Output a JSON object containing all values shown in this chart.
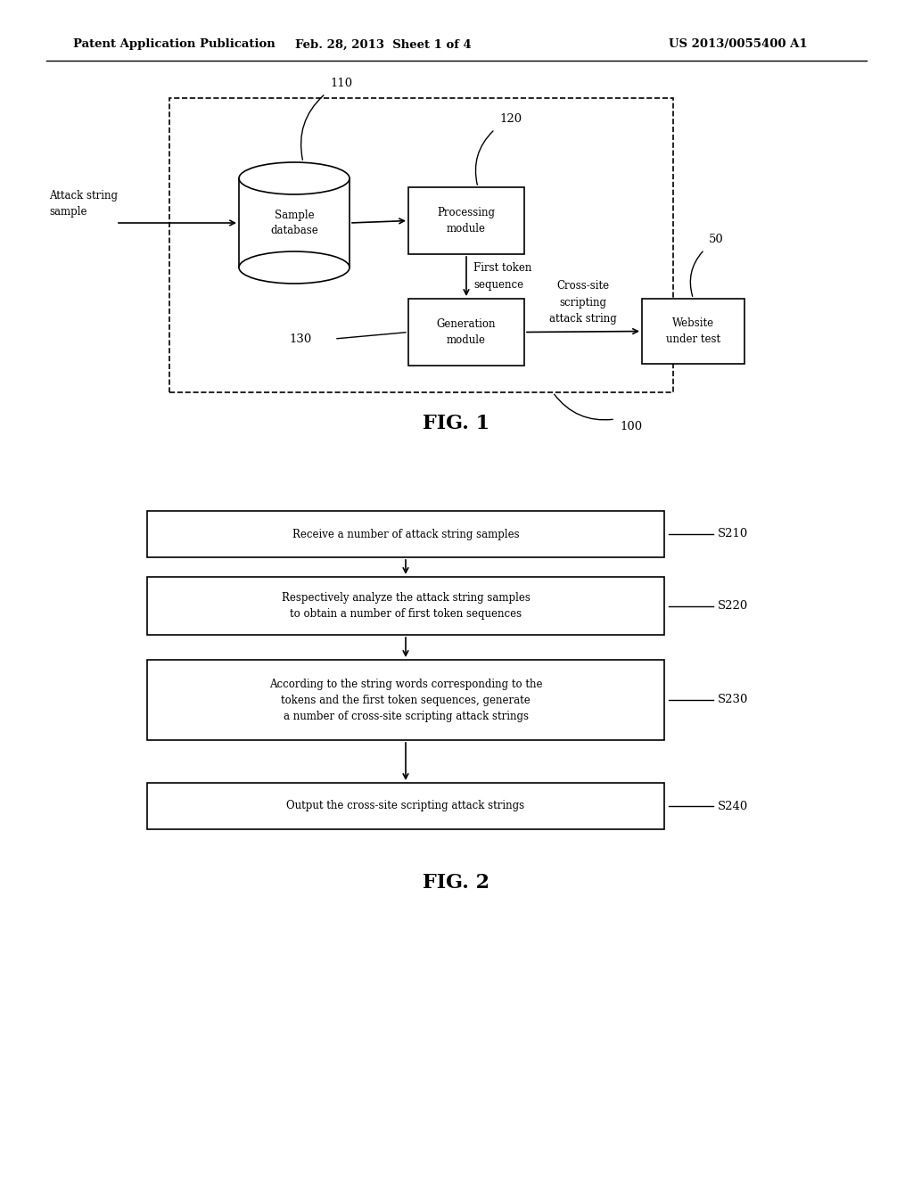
{
  "bg_color": "#ffffff",
  "header_left": "Patent Application Publication",
  "header_mid": "Feb. 28, 2013  Sheet 1 of 4",
  "header_right": "US 2013/0055400 A1",
  "fig1_label": "FIG. 1",
  "fig2_label": "FIG. 2",
  "fig1": {
    "label_100": "100",
    "label_110": "110",
    "label_120": "120",
    "label_130": "130",
    "label_50": "50",
    "attack_string_label": "Attack string\nsample",
    "first_token_label": "First token\nsequence",
    "cross_site_label": "Cross-site\nscripting\nattack string",
    "db_label": "Sample\ndatabase",
    "pm_label": "Processing\nmodule",
    "gm_label": "Generation\nmodule",
    "wt_label": "Website\nunder test"
  },
  "fig2": {
    "label_s210": "S210",
    "label_s220": "S220",
    "label_s230": "S230",
    "label_s240": "S240",
    "text_s210": "Receive a number of attack string samples",
    "text_s220": "Respectively analyze the attack string samples\nto obtain a number of first token sequences",
    "text_s230": "According to the string words corresponding to the\ntokens and the first token sequences, generate\na number of cross-site scripting attack strings",
    "text_s240": "Output the cross-site scripting attack strings"
  }
}
